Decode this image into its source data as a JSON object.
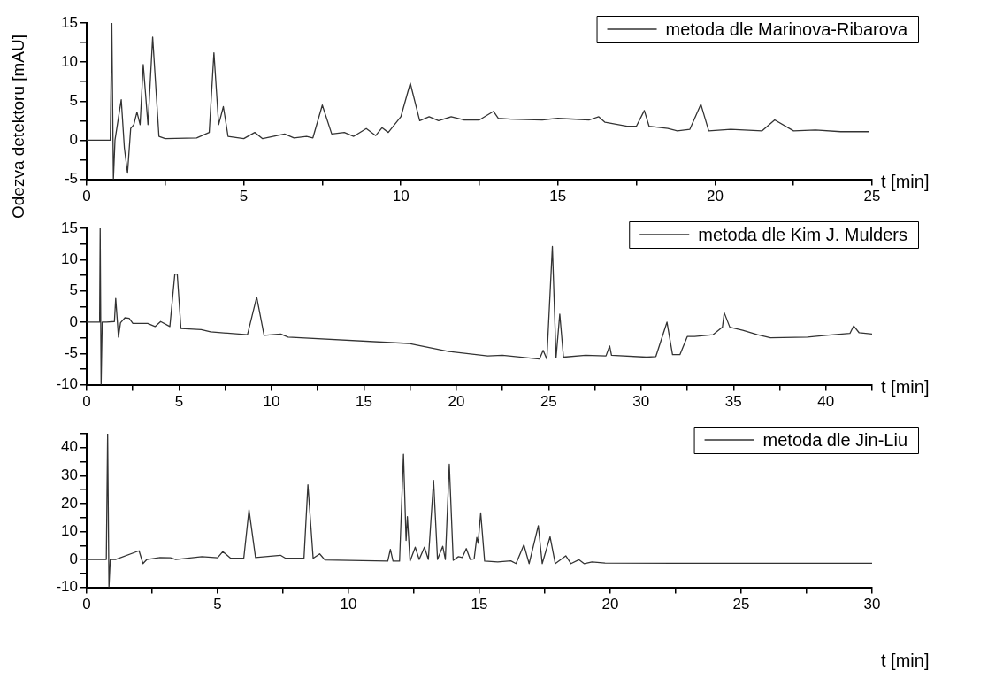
{
  "chart_data": [
    {
      "type": "line",
      "xlabel": "t [min]",
      "legend": "top right",
      "xlim": [
        0,
        25
      ],
      "ylim": [
        -5,
        15
      ],
      "xticks": [
        0,
        {
          "value": 2.5,
          "label": null
        },
        5,
        {
          "value": 7.5,
          "label": null
        },
        10,
        {
          "value": 12.5,
          "label": null
        },
        15,
        {
          "value": 17.5,
          "label": null
        },
        20,
        {
          "value": 22.5,
          "label": null
        },
        25
      ],
      "yticks": [
        -5,
        {
          "value": -2.5,
          "label": null
        },
        0,
        {
          "value": 2.5,
          "label": null
        },
        5,
        {
          "value": 7.5,
          "label": null
        },
        10,
        {
          "value": 12.5,
          "label": null
        },
        15
      ],
      "series": [
        {
          "name": "metoda dle Marinova-Ribarova",
          "color": "#333333",
          "x": [
            0,
            0.75,
            0.8,
            0.85,
            0.9,
            1.1,
            1.2,
            1.3,
            1.4,
            1.5,
            1.6,
            1.7,
            1.8,
            1.95,
            2.1,
            2.3,
            2.5,
            3.5,
            3.9,
            4.05,
            4.2,
            4.35,
            4.5,
            5.0,
            5.35,
            5.6,
            6.3,
            6.6,
            7.0,
            7.2,
            7.5,
            7.8,
            8.2,
            8.5,
            8.9,
            9.2,
            9.4,
            9.6,
            10.0,
            10.3,
            10.6,
            10.9,
            11.2,
            11.6,
            12,
            12.5,
            12.95,
            13.1,
            13.5,
            14.5,
            15,
            16.0,
            16.3,
            16.5,
            17.2,
            17.5,
            17.75,
            17.9,
            18.5,
            18.8,
            19.2,
            19.55,
            19.8,
            20.5,
            21.5,
            21.9,
            22.5,
            23.2,
            24,
            24.9
          ],
          "values": [
            0,
            0,
            15,
            -5,
            0,
            5.2,
            -1,
            -4.2,
            1.5,
            2,
            3.6,
            2,
            9.7,
            2,
            13.2,
            0.5,
            0.2,
            0.3,
            1,
            11.2,
            2,
            4.3,
            0.5,
            0.2,
            1,
            0.2,
            0.8,
            0.3,
            0.5,
            0.3,
            4.5,
            0.8,
            1,
            0.5,
            1.5,
            0.6,
            1.6,
            1,
            3,
            7.3,
            2.5,
            3,
            2.5,
            3,
            2.6,
            2.6,
            3.7,
            2.8,
            2.7,
            2.6,
            2.8,
            2.6,
            3,
            2.3,
            1.8,
            1.8,
            3.8,
            1.8,
            1.5,
            1.2,
            1.4,
            4.6,
            1.2,
            1.4,
            1.2,
            2.6,
            1.2,
            1.3,
            1.1,
            1.1
          ]
        }
      ]
    },
    {
      "type": "line",
      "xlabel": "t [min]",
      "ylabel": "Odezva detektoru [mAU]",
      "legend": "top right",
      "xlim": [
        0,
        42.5
      ],
      "ylim": [
        -10,
        15
      ],
      "xticks": [
        0,
        {
          "value": 2.5,
          "label": null
        },
        5,
        {
          "value": 7.5,
          "label": null
        },
        10,
        {
          "value": 12.5,
          "label": null
        },
        15,
        {
          "value": 17.5,
          "label": null
        },
        20,
        {
          "value": 22.5,
          "label": null
        },
        25,
        {
          "value": 27.5,
          "label": null
        },
        30,
        {
          "value": 32.5,
          "label": null
        },
        35,
        {
          "value": 37.5,
          "label": null
        },
        40,
        {
          "value": 42.5,
          "label": null
        }
      ],
      "yticks": [
        -10,
        {
          "value": -7.5,
          "label": null
        },
        -5,
        {
          "value": -2.5,
          "label": null
        },
        0,
        {
          "value": 2.5,
          "label": null
        },
        5,
        {
          "value": 7.5,
          "label": null
        },
        10,
        {
          "value": 12.5,
          "label": null
        },
        15
      ],
      "series": [
        {
          "name": "metoda dle Kim J. Mulders",
          "color": "#333333",
          "x": [
            0,
            0.7,
            0.73,
            0.78,
            0.84,
            1.07,
            1.5,
            1.57,
            1.72,
            1.83,
            2.07,
            2.3,
            2.5,
            3.3,
            3.7,
            4.0,
            4.5,
            4.77,
            4.9,
            5.1,
            6.2,
            6.7,
            8.7,
            9.2,
            9.6,
            10.5,
            10.9,
            17.4,
            19.6,
            21.7,
            22.5,
            24.5,
            24.7,
            24.9,
            25.2,
            25.4,
            25.6,
            25.8,
            27.0,
            28.1,
            28.3,
            28.4,
            30.3,
            30.8,
            31.4,
            31.7,
            32.1,
            32.5,
            32.9,
            33.9,
            34.4,
            34.5,
            34.8,
            35.5,
            36.3,
            37.0,
            39.0,
            40.0,
            41.3,
            41.5,
            41.8,
            42.5
          ],
          "values": [
            0,
            0,
            15,
            -10,
            0,
            0,
            0.1,
            3.8,
            -2.4,
            -0.1,
            0.7,
            0.6,
            -0.2,
            -0.2,
            -0.7,
            0.1,
            -0.7,
            7.7,
            7.7,
            -1,
            -1.2,
            -1.55,
            -2,
            4,
            -2.1,
            -1.9,
            -2.4,
            -3.4,
            -4.7,
            -5.4,
            -5.3,
            -5.9,
            -4.5,
            -5.9,
            12.1,
            -5.7,
            1.3,
            -5.6,
            -5.3,
            -5.4,
            -3.8,
            -5.3,
            -5.6,
            -5.5,
            0,
            -5.2,
            -5.2,
            -2.3,
            -2.3,
            -2,
            -0.8,
            1.5,
            -0.8,
            -1.3,
            -2,
            -2.5,
            -2.4,
            -2.1,
            -1.8,
            -0.6,
            -1.7,
            -1.9
          ]
        }
      ]
    },
    {
      "type": "line",
      "xlabel": "t [min]",
      "legend": "top right",
      "xlim": [
        0,
        30
      ],
      "ylim": [
        -10,
        45
      ],
      "xticks": [
        0,
        {
          "value": 2.5,
          "label": null
        },
        5,
        {
          "value": 7.5,
          "label": null
        },
        10,
        {
          "value": 12.5,
          "label": null
        },
        15,
        {
          "value": 17.5,
          "label": null
        },
        20,
        {
          "value": 22.5,
          "label": null
        },
        25,
        {
          "value": 27.5,
          "label": null
        },
        30
      ],
      "yticks": [
        -10,
        {
          "value": -5,
          "label": null
        },
        0,
        {
          "value": 5,
          "label": null
        },
        10,
        {
          "value": 15,
          "label": null
        },
        20,
        {
          "value": 25,
          "label": null
        },
        30,
        {
          "value": 35,
          "label": null
        },
        40,
        {
          "value": 45,
          "label": null
        }
      ],
      "series": [
        {
          "name": "metoda dle Jin-Liu",
          "color": "#333333",
          "x": [
            0,
            0.75,
            0.8,
            0.85,
            0.9,
            1.1,
            2.0,
            2.15,
            2.3,
            2.8,
            3.2,
            3.4,
            4.4,
            5.0,
            5.2,
            5.5,
            6.0,
            6.2,
            6.45,
            7.4,
            7.6,
            8.3,
            8.45,
            8.65,
            8.9,
            9.1,
            11.5,
            11.6,
            11.7,
            11.95,
            12.1,
            12.2,
            12.25,
            12.35,
            12.55,
            12.7,
            12.9,
            13.05,
            13.25,
            13.4,
            13.6,
            13.7,
            13.85,
            14.0,
            14.2,
            14.35,
            14.5,
            14.65,
            14.8,
            14.9,
            14.95,
            15.05,
            15.2,
            15.7,
            16.2,
            16.4,
            16.7,
            16.9,
            17.25,
            17.4,
            17.7,
            17.9,
            18.3,
            18.5,
            18.8,
            19.0,
            19.3,
            19.8,
            23.0,
            26.4,
            30
          ],
          "values": [
            0,
            0,
            45,
            -10,
            0,
            0,
            3.1,
            -1.5,
            0,
            0.7,
            0.6,
            0,
            1,
            0.6,
            2.8,
            0.4,
            0.4,
            17.8,
            0.7,
            1.5,
            0.4,
            0.4,
            26.7,
            0.4,
            2,
            -0.2,
            -0.6,
            3.6,
            -0.6,
            -0.6,
            37.7,
            6.8,
            15.3,
            -0.6,
            4.4,
            0,
            4.4,
            0,
            28.3,
            0,
            4.7,
            0,
            34.1,
            -0.3,
            1,
            0.7,
            3.9,
            0,
            0.2,
            7.9,
            5.8,
            16.7,
            -0.6,
            -0.9,
            -0.5,
            -1.5,
            5.2,
            -1.5,
            12.1,
            -1.5,
            8.1,
            -1.5,
            1.3,
            -1.5,
            -0.1,
            -1.5,
            -0.9,
            -1.3,
            -1.4,
            -1.4,
            -1.4
          ]
        }
      ]
    }
  ]
}
